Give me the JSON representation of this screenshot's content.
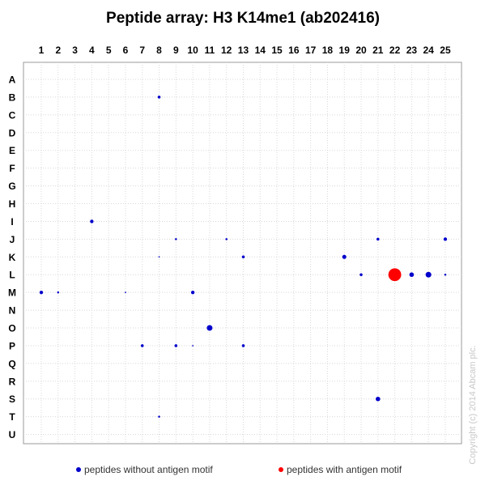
{
  "chart_data": {
    "type": "scatter",
    "title": "Peptide array: H3 K14me1 (ab202416)",
    "columns": [
      "1",
      "2",
      "3",
      "4",
      "5",
      "6",
      "7",
      "8",
      "9",
      "10",
      "11",
      "12",
      "13",
      "14",
      "15",
      "16",
      "17",
      "18",
      "19",
      "20",
      "21",
      "22",
      "23",
      "24",
      "25"
    ],
    "rows": [
      "A",
      "B",
      "C",
      "D",
      "E",
      "F",
      "G",
      "H",
      "I",
      "J",
      "K",
      "L",
      "M",
      "N",
      "O",
      "P",
      "Q",
      "R",
      "S",
      "T",
      "U"
    ],
    "grid": true,
    "legend_placement": "bottom",
    "series": [
      {
        "name": "peptides without antigen motif",
        "color": "#0000cc",
        "points": [
          {
            "col": 8,
            "row": "B",
            "value": 2
          },
          {
            "col": 4,
            "row": "I",
            "value": 3
          },
          {
            "col": 9,
            "row": "J",
            "value": 1
          },
          {
            "col": 12,
            "row": "J",
            "value": 1
          },
          {
            "col": 21,
            "row": "J",
            "value": 2
          },
          {
            "col": 25,
            "row": "J",
            "value": 3
          },
          {
            "col": 8,
            "row": "K",
            "value": 0.5
          },
          {
            "col": 13,
            "row": "K",
            "value": 2
          },
          {
            "col": 19,
            "row": "K",
            "value": 4
          },
          {
            "col": 20,
            "row": "L",
            "value": 2
          },
          {
            "col": 23,
            "row": "L",
            "value": 5
          },
          {
            "col": 24,
            "row": "L",
            "value": 8
          },
          {
            "col": 25,
            "row": "L",
            "value": 1
          },
          {
            "col": 1,
            "row": "M",
            "value": 3
          },
          {
            "col": 2,
            "row": "M",
            "value": 1
          },
          {
            "col": 6,
            "row": "M",
            "value": 0.5
          },
          {
            "col": 10,
            "row": "M",
            "value": 3
          },
          {
            "col": 11,
            "row": "O",
            "value": 8
          },
          {
            "col": 7,
            "row": "P",
            "value": 2
          },
          {
            "col": 9,
            "row": "P",
            "value": 2
          },
          {
            "col": 10,
            "row": "P",
            "value": 0.5
          },
          {
            "col": 13,
            "row": "P",
            "value": 2
          },
          {
            "col": 21,
            "row": "S",
            "value": 5
          },
          {
            "col": 8,
            "row": "T",
            "value": 1
          }
        ]
      },
      {
        "name": "peptides with antigen motif",
        "color": "#ff0000",
        "points": [
          {
            "col": 22,
            "row": "L",
            "value": 40
          }
        ]
      }
    ],
    "copyright": "Copyright (c) 2014 Abcam plc."
  }
}
